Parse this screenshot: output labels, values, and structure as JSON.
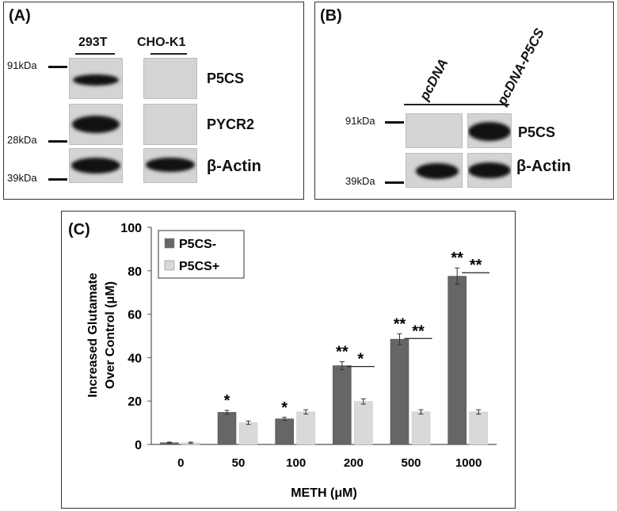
{
  "panels": {
    "a": {
      "label": "(A)",
      "cell_lines": [
        "293T",
        "CHO-K1"
      ],
      "markers": [
        "91kDa",
        "28kDa",
        "39kDa"
      ],
      "proteins": [
        "P5CS",
        "PYCR2",
        "β-Actin"
      ]
    },
    "b": {
      "label": "(B)",
      "constructs": [
        "pcDNA",
        "pcDNA-P5CS"
      ],
      "markers": [
        "91kDa",
        "39kDa"
      ],
      "proteins": [
        "P5CS",
        "β-Actin"
      ]
    },
    "c": {
      "label": "(C)"
    }
  },
  "chart_data": {
    "type": "bar",
    "categories": [
      "0",
      "50",
      "100",
      "200",
      "500",
      "1000"
    ],
    "series": [
      {
        "name": "P5CS-",
        "values": [
          0.8,
          14.8,
          11.8,
          36.3,
          48.5,
          77.5
        ],
        "errors": [
          0.3,
          0.9,
          0.7,
          1.8,
          2.5,
          3.8
        ],
        "color": "#666666"
      },
      {
        "name": "P5CS+",
        "values": [
          0.8,
          10.0,
          15.0,
          19.8,
          15.0,
          15.0
        ],
        "errors": [
          0.3,
          0.8,
          1.0,
          1.2,
          1.0,
          1.0
        ],
        "color": "#d9d9d9"
      }
    ],
    "xlabel": "METH (μM)",
    "ylabel_lines": [
      "Increased Glutamate",
      "Over Control (μM)"
    ],
    "ylim": [
      0,
      100
    ],
    "yticks": [
      0,
      20,
      40,
      60,
      80,
      100
    ],
    "legend_position": "top-left",
    "annotations": {
      "above_p5cs_minus": [
        "",
        "*",
        "*",
        "**",
        "**",
        "**"
      ],
      "between_groups": [
        "",
        "",
        "",
        "*",
        "**",
        "**"
      ]
    }
  }
}
